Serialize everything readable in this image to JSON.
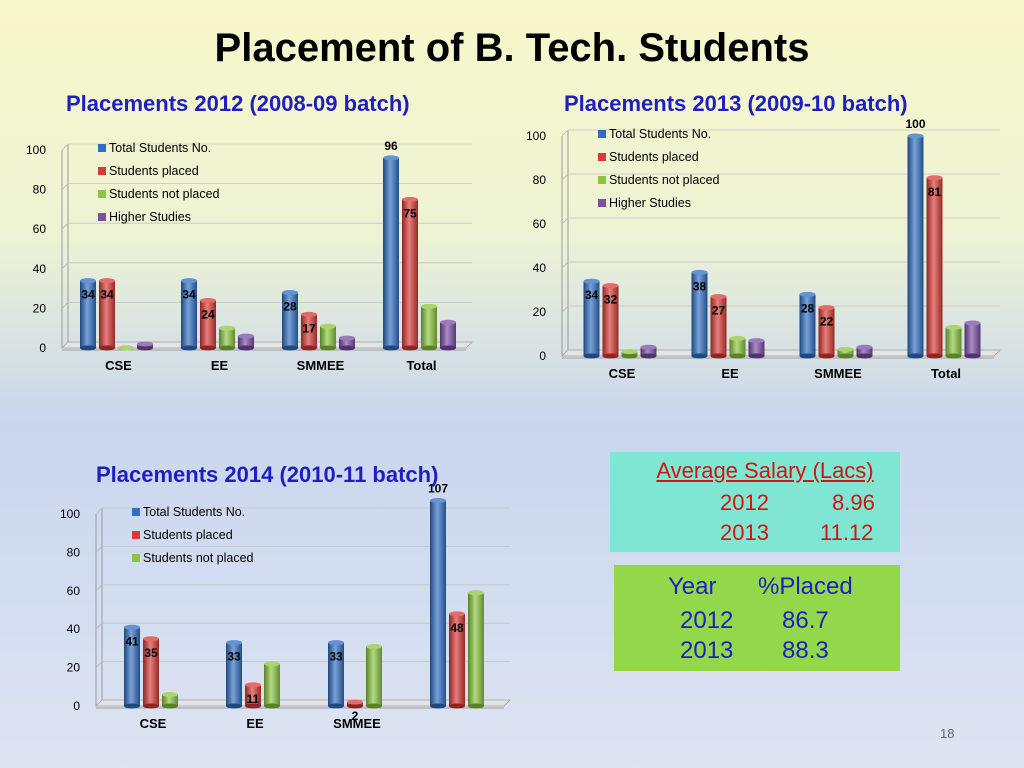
{
  "slide": {
    "title": "Placement of B. Tech. Students",
    "page_number": "18"
  },
  "salary_box": {
    "title": "Average Salary (Lacs)",
    "rows": [
      {
        "year": "2012",
        "value": "8.96"
      },
      {
        "year": "2013",
        "value": "11.12"
      }
    ]
  },
  "placed_box": {
    "headers": [
      "Year",
      "%Placed"
    ],
    "rows": [
      {
        "year": "2012",
        "value": "86.7"
      },
      {
        "year": "2013",
        "value": "88.3"
      }
    ]
  },
  "colors": {
    "total": "#2f6fc4",
    "placed": "#d93a35",
    "not_placed": "#8cc63e",
    "higher": "#7b4fa6"
  },
  "chart_data": [
    {
      "type": "bar",
      "title": "Placements 2012 (2008-09 batch)",
      "categories": [
        "CSE",
        "EE",
        "SMMEE",
        "Total"
      ],
      "ylim": [
        0,
        100
      ],
      "yticks": [
        0,
        20,
        40,
        60,
        80,
        100
      ],
      "legend": "top-left",
      "series": [
        {
          "name": "Total Students No.",
          "color_key": "total",
          "values": [
            34,
            34,
            28,
            96
          ],
          "labels": [
            "34",
            "34",
            "28",
            "96"
          ]
        },
        {
          "name": "Students placed",
          "color_key": "placed",
          "values": [
            34,
            24,
            17,
            75
          ],
          "labels": [
            "34",
            "24",
            "17",
            "75"
          ]
        },
        {
          "name": "Students not placed",
          "color_key": "not_placed",
          "values": [
            0,
            10,
            11,
            21
          ],
          "labels": [
            "",
            "",
            "",
            ""
          ]
        },
        {
          "name": "Higher Studies",
          "color_key": "higher",
          "values": [
            2,
            6,
            5,
            13
          ],
          "labels": [
            "",
            "",
            "",
            ""
          ]
        }
      ]
    },
    {
      "type": "bar",
      "title": "Placements 2013 (2009-10 batch)",
      "categories": [
        "CSE",
        "EE",
        "SMMEE",
        "Total"
      ],
      "ylim": [
        0,
        100
      ],
      "yticks": [
        0,
        20,
        40,
        60,
        80,
        100
      ],
      "legend": "top-left",
      "series": [
        {
          "name": "Total Students No.",
          "color_key": "total",
          "values": [
            34,
            38,
            28,
            100
          ],
          "labels": [
            "34",
            "38",
            "28",
            "100"
          ]
        },
        {
          "name": "Students placed",
          "color_key": "placed",
          "values": [
            32,
            27,
            22,
            81
          ],
          "labels": [
            "32",
            "27",
            "22",
            "81"
          ]
        },
        {
          "name": "Students not placed",
          "color_key": "not_placed",
          "values": [
            2,
            8,
            3,
            13
          ],
          "labels": [
            "",
            "",
            "",
            ""
          ]
        },
        {
          "name": "Higher Studies",
          "color_key": "higher",
          "values": [
            4,
            7,
            4,
            15
          ],
          "labels": [
            "",
            "",
            "",
            ""
          ]
        }
      ]
    },
    {
      "type": "bar",
      "title": "Placements 2014 (2010-11 batch)",
      "categories": [
        "CSE",
        "EE",
        "SMMEE",
        ""
      ],
      "ylim": [
        0,
        100
      ],
      "yticks": [
        0,
        20,
        40,
        60,
        80,
        100
      ],
      "legend": "top-left",
      "series": [
        {
          "name": "Total Students No.",
          "color_key": "total",
          "values": [
            41,
            33,
            33,
            107
          ],
          "labels": [
            "41",
            "33",
            "33",
            "107"
          ]
        },
        {
          "name": "Students placed",
          "color_key": "placed",
          "values": [
            35,
            11,
            2,
            48
          ],
          "labels": [
            "35",
            "11",
            "2",
            "48"
          ]
        },
        {
          "name": "Students not placed",
          "color_key": "not_placed",
          "values": [
            6,
            22,
            31,
            59
          ],
          "labels": [
            "",
            "",
            "",
            ""
          ]
        }
      ]
    }
  ]
}
